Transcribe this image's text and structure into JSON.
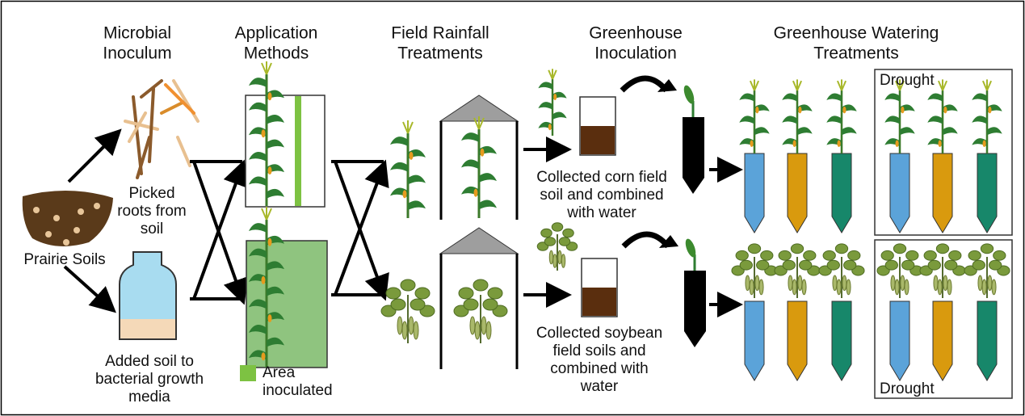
{
  "headers": [
    [
      "Microbial",
      "Inoculum"
    ],
    [
      "Application",
      "Methods"
    ],
    [
      "Field Rainfall",
      "Treatments"
    ],
    [
      "Greenhouse",
      "Inoculation"
    ],
    [
      "Greenhouse Watering",
      "Treatments"
    ]
  ],
  "labels": {
    "prairie_soils": [
      "Prairie Soils"
    ],
    "picked_roots": [
      "Picked",
      "roots from",
      "soil"
    ],
    "added_soil": [
      "Added soil to",
      "bacterial growth",
      "media"
    ],
    "area_inoculated": [
      "Area",
      "inoculated"
    ],
    "corn_soil": [
      "Collected corn field",
      "soil and combined",
      "with water"
    ],
    "soybean_soil": [
      "Collected soybean",
      "field soils and",
      "combined with",
      "water"
    ],
    "drought_top": [
      "Drought"
    ],
    "drought_bottom": [
      "Drought"
    ]
  }
}
